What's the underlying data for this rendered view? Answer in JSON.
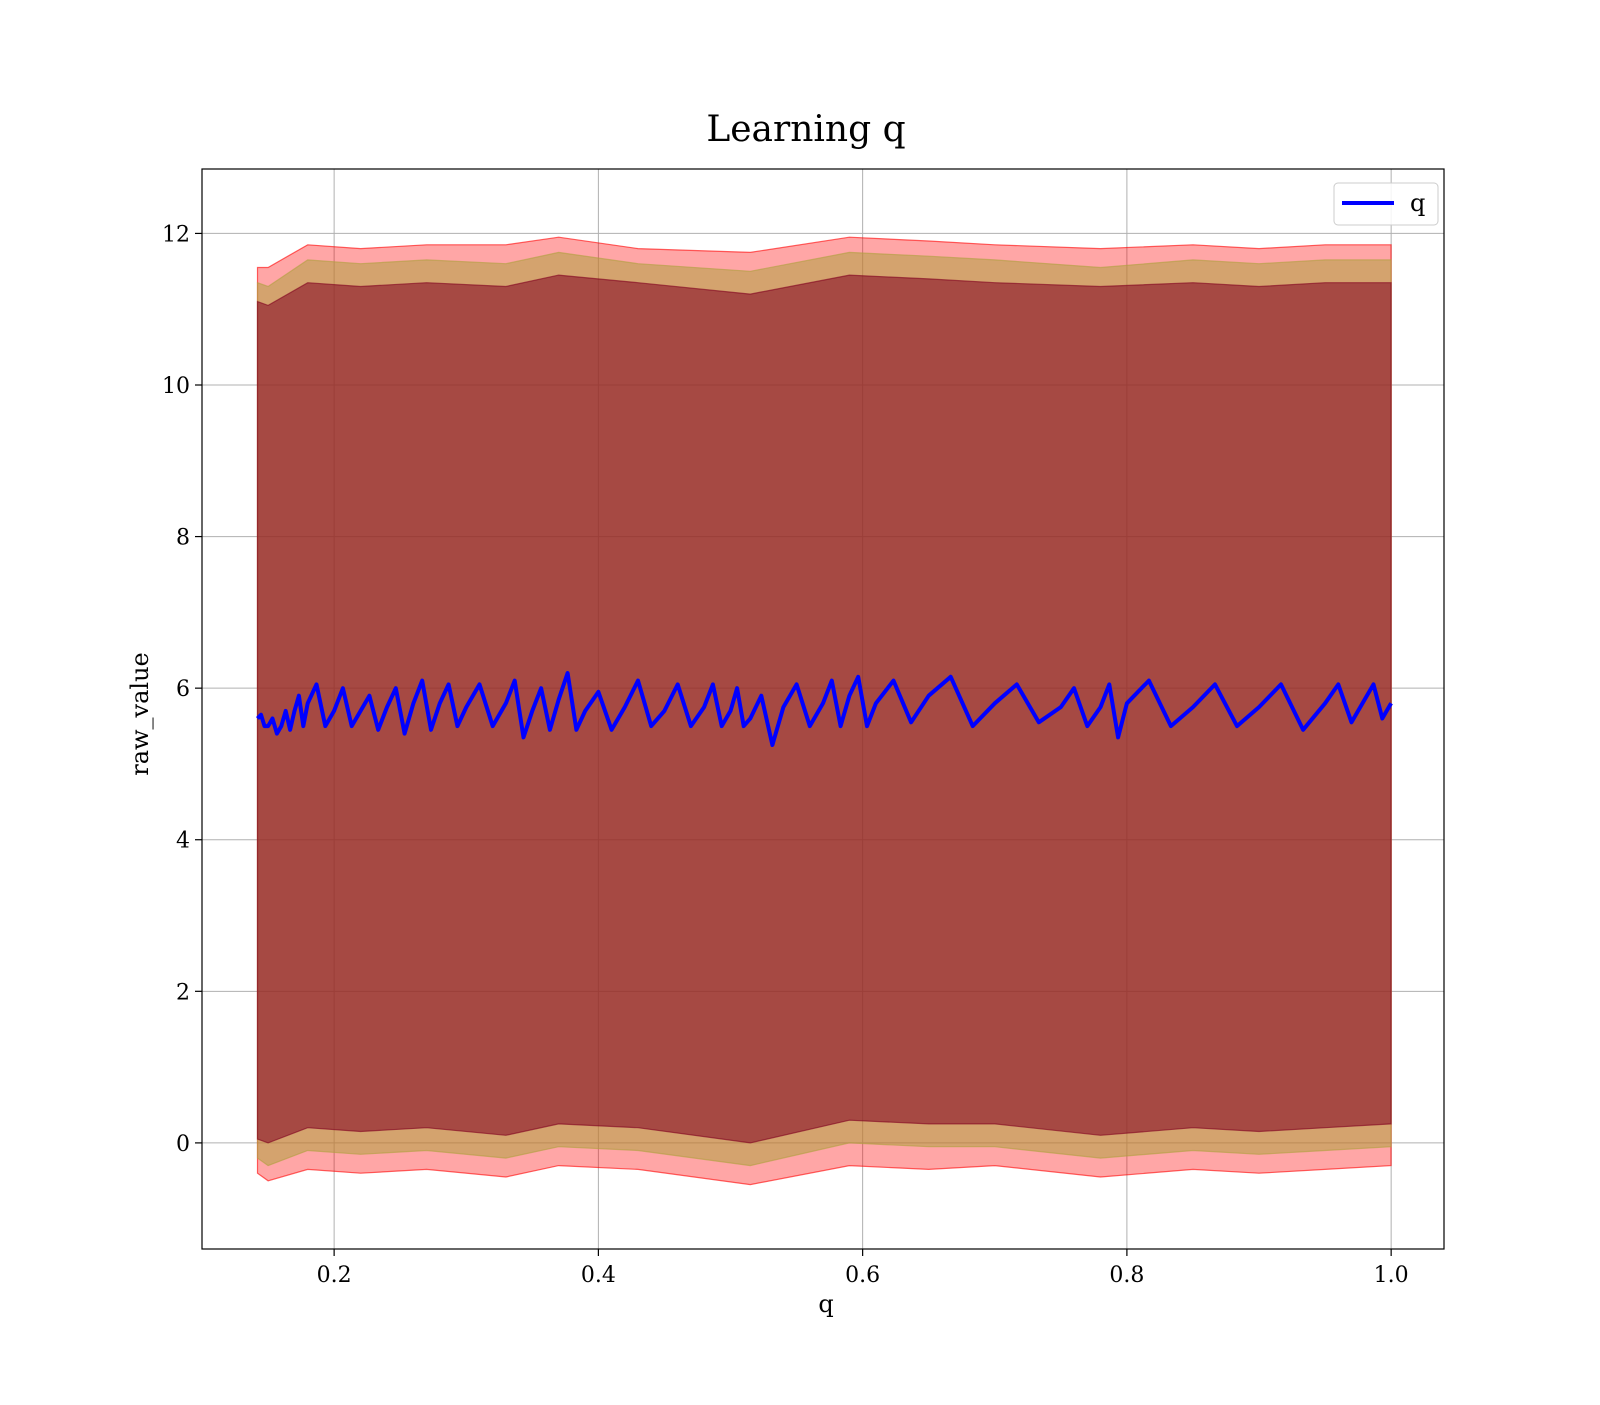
{
  "chart_data": {
    "type": "line",
    "title": "Learning q",
    "xlabel": "q",
    "ylabel": "raw_value",
    "xlim": [
      0.1,
      1.04
    ],
    "ylim": [
      -1.4,
      12.85
    ],
    "xticks": [
      0.2,
      0.4,
      0.6,
      0.8,
      1.0
    ],
    "xtick_labels": [
      "0.2",
      "0.4",
      "0.6",
      "0.8",
      "1.0"
    ],
    "yticks": [
      0,
      2,
      4,
      6,
      8,
      10,
      12
    ],
    "ytick_labels": [
      "0",
      "2",
      "4",
      "6",
      "8",
      "10",
      "12"
    ],
    "grid": true,
    "legend": {
      "position": "top-right",
      "entries": [
        "q"
      ]
    },
    "x_range": [
      0.142,
      1.0
    ],
    "series": [
      {
        "name": "q",
        "role": "mean_line",
        "color": "#0000ff",
        "x": [
          0.142,
          0.15,
          0.16,
          0.17,
          0.18,
          0.2,
          0.22,
          0.24,
          0.26,
          0.28,
          0.3,
          0.33,
          0.35,
          0.37,
          0.39,
          0.42,
          0.45,
          0.48,
          0.5,
          0.515,
          0.54,
          0.57,
          0.59,
          0.61,
          0.65,
          0.7,
          0.75,
          0.78,
          0.8,
          0.85,
          0.9,
          0.95,
          0.98,
          1.0
        ],
        "y": [
          5.6,
          5.5,
          5.5,
          5.7,
          5.8,
          5.7,
          5.7,
          5.75,
          5.8,
          5.8,
          5.75,
          5.8,
          5.7,
          5.85,
          5.7,
          5.75,
          5.7,
          5.75,
          5.7,
          5.6,
          5.75,
          5.8,
          5.9,
          5.8,
          5.9,
          5.8,
          5.75,
          5.75,
          5.8,
          5.75,
          5.75,
          5.8,
          5.85,
          5.8
        ],
        "y_min": [
          5.5,
          5.4,
          5.45,
          5.5,
          5.5,
          5.5,
          5.45,
          5.4,
          5.45,
          5.5,
          5.5,
          5.35,
          5.45,
          5.45,
          5.45,
          5.5,
          5.5,
          5.5,
          5.5,
          5.25,
          5.5,
          5.5,
          5.5,
          5.55,
          5.5,
          5.55,
          5.5,
          5.35,
          5.5,
          5.5,
          5.45,
          5.55,
          5.6,
          5.6
        ],
        "y_max": [
          5.65,
          5.6,
          5.7,
          5.9,
          6.05,
          6.0,
          5.9,
          6.0,
          6.1,
          6.05,
          6.05,
          6.1,
          6.0,
          6.2,
          5.95,
          6.1,
          6.05,
          6.05,
          6.0,
          5.9,
          6.05,
          6.1,
          6.15,
          6.1,
          6.15,
          6.05,
          6.0,
          6.05,
          6.1,
          6.05,
          6.05,
          6.05,
          6.05,
          6.0
        ]
      },
      {
        "role": "band_outer",
        "color": "#ff0000",
        "opacity": 0.35,
        "x": [
          0.142,
          0.15,
          0.18,
          0.22,
          0.27,
          0.33,
          0.37,
          0.43,
          0.515,
          0.59,
          0.65,
          0.7,
          0.78,
          0.85,
          0.9,
          0.95,
          1.0
        ],
        "lower": [
          -0.4,
          -0.5,
          -0.35,
          -0.4,
          -0.35,
          -0.45,
          -0.3,
          -0.35,
          -0.55,
          -0.3,
          -0.35,
          -0.3,
          -0.45,
          -0.35,
          -0.4,
          -0.35,
          -0.3
        ],
        "upper": [
          11.55,
          11.55,
          11.85,
          11.8,
          11.85,
          11.85,
          11.95,
          11.8,
          11.75,
          11.95,
          11.9,
          11.85,
          11.8,
          11.85,
          11.8,
          11.85,
          11.85
        ]
      },
      {
        "role": "band_middle",
        "color": "#b0a040",
        "opacity": 0.55,
        "x": [
          0.142,
          0.15,
          0.18,
          0.22,
          0.27,
          0.33,
          0.37,
          0.43,
          0.515,
          0.59,
          0.65,
          0.7,
          0.78,
          0.85,
          0.9,
          0.95,
          1.0
        ],
        "lower": [
          -0.2,
          -0.3,
          -0.1,
          -0.15,
          -0.1,
          -0.2,
          -0.05,
          -0.1,
          -0.3,
          0.0,
          -0.05,
          -0.05,
          -0.2,
          -0.1,
          -0.15,
          -0.1,
          -0.05
        ],
        "upper": [
          11.35,
          11.3,
          11.65,
          11.6,
          11.65,
          11.6,
          11.75,
          11.6,
          11.5,
          11.75,
          11.7,
          11.65,
          11.55,
          11.65,
          11.6,
          11.65,
          11.65
        ]
      },
      {
        "role": "band_inner",
        "color": "#800020",
        "opacity": 0.55,
        "x": [
          0.142,
          0.15,
          0.18,
          0.22,
          0.27,
          0.33,
          0.37,
          0.43,
          0.515,
          0.59,
          0.65,
          0.7,
          0.78,
          0.85,
          0.9,
          0.95,
          1.0
        ],
        "lower": [
          0.05,
          0.0,
          0.2,
          0.15,
          0.2,
          0.1,
          0.25,
          0.2,
          0.0,
          0.3,
          0.25,
          0.25,
          0.1,
          0.2,
          0.15,
          0.2,
          0.25
        ],
        "upper": [
          11.1,
          11.05,
          11.35,
          11.3,
          11.35,
          11.3,
          11.45,
          11.35,
          11.2,
          11.45,
          11.4,
          11.35,
          11.3,
          11.35,
          11.3,
          11.35,
          11.35
        ]
      }
    ]
  }
}
